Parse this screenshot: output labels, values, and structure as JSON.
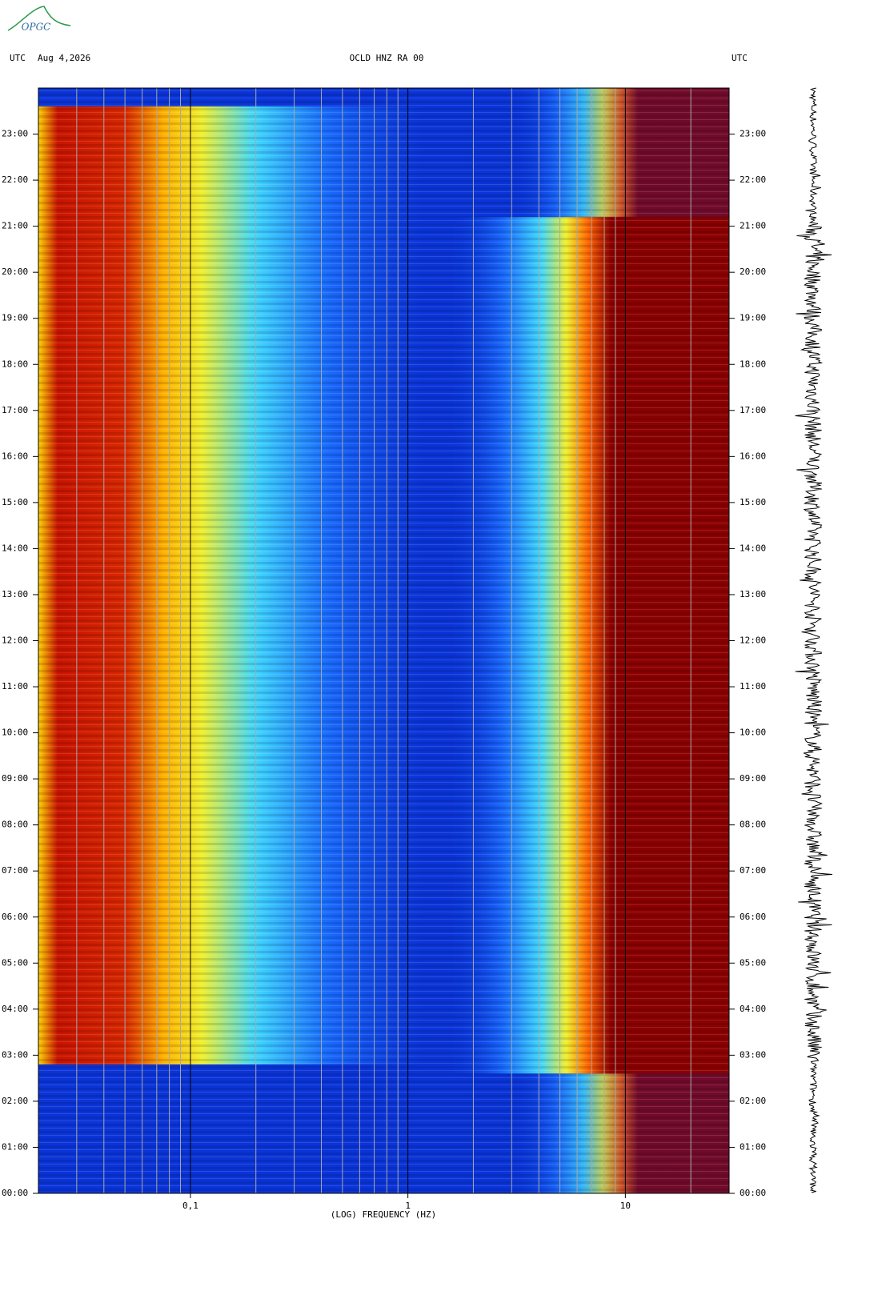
{
  "logo": "OPGC",
  "header": {
    "left_zone": "UTC",
    "date": "Aug 4,2026",
    "station": "OCLD HNZ RA 00",
    "right_zone": "UTC"
  },
  "chart_data": {
    "type": "spectrogram",
    "xlabel": "(LOG) FREQUENCY (HZ)",
    "xscale": "log",
    "xlim": [
      0.02,
      30
    ],
    "xticks": [
      {
        "value": 0.1,
        "label": "0,1"
      },
      1,
      10
    ],
    "xgrid": [
      0.03,
      0.04,
      0.05,
      0.06,
      0.07,
      0.08,
      0.09,
      0.2,
      0.3,
      0.4,
      0.5,
      0.6,
      0.7,
      0.8,
      0.9,
      2,
      3,
      4,
      5,
      6,
      7,
      8,
      9,
      20
    ],
    "ylim": [
      0,
      24
    ],
    "yticks": [
      {
        "value": 0,
        "label": "00:00"
      },
      {
        "value": 1,
        "label": "01:00"
      },
      {
        "value": 2,
        "label": "02:00"
      },
      {
        "value": 3,
        "label": "03:00"
      },
      {
        "value": 4,
        "label": "04:00"
      },
      {
        "value": 5,
        "label": "05:00"
      },
      {
        "value": 6,
        "label": "06:00"
      },
      {
        "value": 7,
        "label": "07:00"
      },
      {
        "value": 8,
        "label": "08:00"
      },
      {
        "value": 9,
        "label": "09:00"
      },
      {
        "value": 10,
        "label": "10:00"
      },
      {
        "value": 11,
        "label": "11:00"
      },
      {
        "value": 12,
        "label": "12:00"
      },
      {
        "value": 13,
        "label": "13:00"
      },
      {
        "value": 14,
        "label": "14:00"
      },
      {
        "value": 15,
        "label": "15:00"
      },
      {
        "value": 16,
        "label": "16:00"
      },
      {
        "value": 17,
        "label": "17:00"
      },
      {
        "value": 18,
        "label": "18:00"
      },
      {
        "value": 19,
        "label": "19:00"
      },
      {
        "value": 20,
        "label": "20:00"
      },
      {
        "value": 21,
        "label": "21:00"
      },
      {
        "value": 22,
        "label": "22:00"
      },
      {
        "value": 23,
        "label": "23:00"
      }
    ]
  }
}
